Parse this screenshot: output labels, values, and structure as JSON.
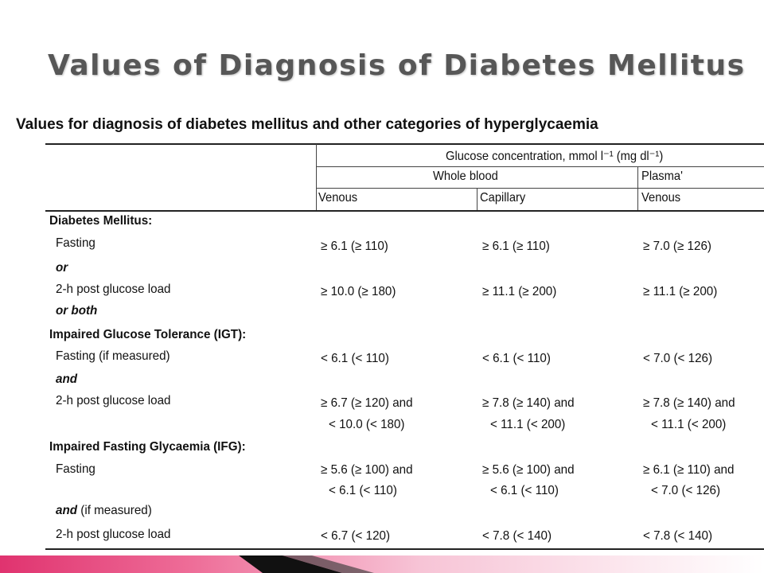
{
  "slide": {
    "title": "Values of Diagnosis of Diabetes Mellitus"
  },
  "table": {
    "caption": "Values for diagnosis of diabetes mellitus and other categories of hyperglycaemia",
    "header": {
      "group": "Glucose concentration, mmol l⁻¹ (mg dl⁻¹)",
      "whole_blood": "Whole blood",
      "plasma": "Plasma'",
      "venous": "Venous",
      "capillary": "Capillary",
      "plasma_venous": "Venous"
    },
    "rows": {
      "dm_title": "Diabetes Mellitus:",
      "dm_fasting": "Fasting",
      "dm_fasting_v": "≥ 6.1 (≥ 110)",
      "dm_fasting_c": "≥ 6.1 (≥ 110)",
      "dm_fasting_p": "≥ 7.0 (≥ 126)",
      "dm_or": "or",
      "dm_2h": "2-h post glucose load",
      "dm_2h_v": "≥ 10.0 (≥ 180)",
      "dm_2h_c": "≥ 11.1 (≥ 200)",
      "dm_2h_p": "≥ 11.1 (≥ 200)",
      "dm_or_both": "or both",
      "igt_title": "Impaired Glucose Tolerance (IGT):",
      "igt_fasting": "Fasting (if measured)",
      "igt_fasting_v": "< 6.1 (< 110)",
      "igt_fasting_c": "< 6.1 (< 110)",
      "igt_fasting_p": "< 7.0 (< 126)",
      "igt_and": "and",
      "igt_2h": "2-h post glucose load",
      "igt_2h_v1": "≥ 6.7 (≥ 120) and",
      "igt_2h_v2": "< 10.0 (< 180)",
      "igt_2h_c1": "≥ 7.8 (≥ 140) and",
      "igt_2h_c2": "< 11.1 (< 200)",
      "igt_2h_p1": "≥ 7.8 (≥ 140) and",
      "igt_2h_p2": "< 11.1 (< 200)",
      "ifg_title": "Impaired Fasting Glycaemia (IFG):",
      "ifg_fasting": "Fasting",
      "ifg_fasting_v1": "≥ 5.6 (≥ 100) and",
      "ifg_fasting_v2": "< 6.1 (< 110)",
      "ifg_fasting_c1": "≥ 5.6 (≥ 100) and",
      "ifg_fasting_c2": "< 6.1 (< 110)",
      "ifg_fasting_p1": "≥ 6.1 (≥ 110) and",
      "ifg_fasting_p2": "< 7.0 (< 126)",
      "ifg_and": "and",
      "ifg_if_measured": " (if measured)",
      "ifg_2h": "2-h post glucose load",
      "ifg_2h_v": "< 6.7 (< 120)",
      "ifg_2h_c": "< 7.8 (< 140)",
      "ifg_2h_p": "< 7.8 (< 140)"
    }
  },
  "colors": {
    "title": "#575757",
    "accent_pink": "#e0336f",
    "accent_black": "#111111"
  }
}
